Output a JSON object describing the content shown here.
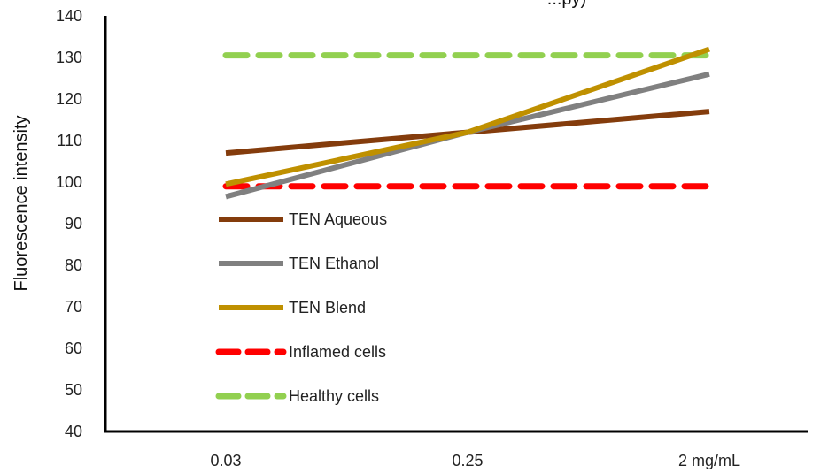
{
  "chart_data": {
    "type": "line",
    "title": "...py)",
    "xlabel": "",
    "ylabel": "Fluorescence intensity",
    "categories": [
      "0.03",
      "0.25",
      "2 mg/mL"
    ],
    "ylim": [
      40,
      140
    ],
    "yticks": [
      40,
      50,
      60,
      70,
      80,
      90,
      100,
      110,
      120,
      130,
      140
    ],
    "grid": false,
    "legend_position": "center-left",
    "series": [
      {
        "name": "TEN Aqueous",
        "values": [
          107,
          112,
          117
        ],
        "color": "#843c0c",
        "dashed": false
      },
      {
        "name": "TEN Ethanol",
        "values": [
          96.5,
          112,
          126
        ],
        "color": "#808080",
        "dashed": false
      },
      {
        "name": "TEN Blend",
        "values": [
          99.5,
          112,
          132
        ],
        "color": "#bf9000",
        "dashed": false
      },
      {
        "name": "Inflamed cells",
        "values": [
          99,
          99,
          99
        ],
        "color": "#ff0000",
        "dashed": true
      },
      {
        "name": "Healthy cells",
        "values": [
          130.5,
          130.5,
          130.5
        ],
        "color": "#92d050",
        "dashed": true
      }
    ]
  }
}
